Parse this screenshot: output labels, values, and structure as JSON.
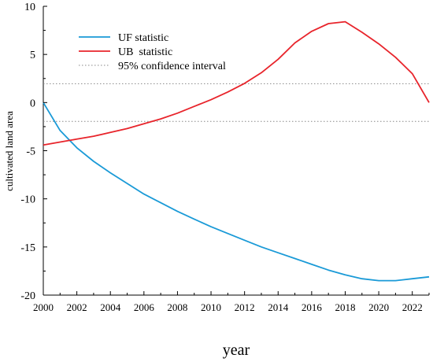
{
  "chart_data": {
    "type": "line",
    "title": "",
    "xlabel": "year",
    "ylabel": "cultivated land area",
    "xlim": [
      2000,
      2023
    ],
    "ylim": [
      -20,
      10
    ],
    "xticks": [
      2000,
      2002,
      2004,
      2006,
      2008,
      2010,
      2012,
      2014,
      2016,
      2018,
      2020,
      2022
    ],
    "xtick_labels": [
      "2000",
      "2002",
      "2004",
      "2006",
      "2008",
      "2010",
      "2012",
      "2014",
      "2016",
      "2018",
      "2020",
      "2022"
    ],
    "yticks": [
      10,
      5,
      0,
      -5,
      -10,
      -15,
      -20
    ],
    "ytick_labels": [
      "10",
      "5",
      "0",
      "-5",
      "-10",
      "-15",
      "-20"
    ],
    "grid": false,
    "legend_position": "top-left",
    "x": [
      2000,
      2001,
      2002,
      2003,
      2004,
      2005,
      2006,
      2007,
      2008,
      2009,
      2010,
      2011,
      2012,
      2013,
      2014,
      2015,
      2016,
      2017,
      2018,
      2019,
      2020,
      2021,
      2022,
      2023
    ],
    "series": [
      {
        "name": "UF statistic",
        "color": "#1a9ad7",
        "style": "solid",
        "values": [
          0,
          -2.9,
          -4.7,
          -6.1,
          -7.3,
          -8.4,
          -9.5,
          -10.4,
          -11.3,
          -12.1,
          -12.9,
          -13.6,
          -14.3,
          -15.0,
          -15.6,
          -16.2,
          -16.8,
          -17.4,
          -17.9,
          -18.3,
          -18.5,
          -18.5,
          -18.3,
          -18.1
        ]
      },
      {
        "name": "UB  statistic",
        "color": "#e8242b",
        "style": "solid",
        "values": [
          -4.4,
          -4.1,
          -3.8,
          -3.5,
          -3.1,
          -2.7,
          -2.2,
          -1.7,
          -1.1,
          -0.4,
          0.3,
          1.1,
          2.0,
          3.1,
          4.5,
          6.2,
          7.4,
          8.2,
          8.4,
          7.3,
          6.1,
          4.7,
          3.0,
          0.0
        ]
      }
    ],
    "reference_lines": [
      {
        "name": "95% confidence interval",
        "color": "#888888",
        "style": "dotted",
        "values": [
          1.96,
          -1.96
        ]
      }
    ]
  }
}
